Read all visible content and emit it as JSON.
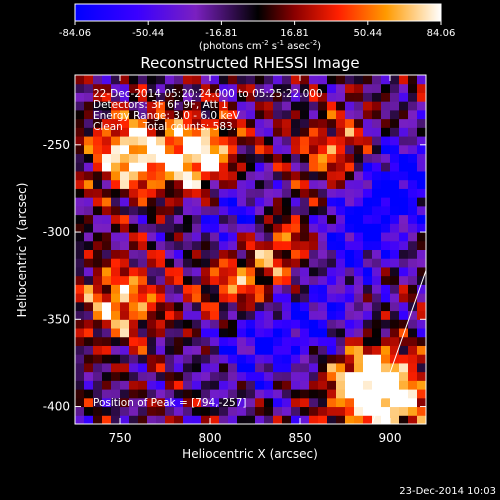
{
  "chart_data": {
    "type": "heatmap",
    "title": "Reconstructed RHESSI Image",
    "xlabel": "Heliocentric X (arcsec)",
    "ylabel": "Heliocentric Y (arcsec)",
    "xlim": [
      725,
      920
    ],
    "ylim": [
      -410,
      -210
    ],
    "x_ticks": [
      750,
      800,
      850,
      900
    ],
    "y_ticks": [
      -250,
      -300,
      -350,
      -400
    ],
    "colorbar": {
      "range": [
        -84.06,
        84.06
      ],
      "ticks": [
        "-84.06",
        "-50.44",
        "-16.81",
        "16.81",
        "50.44",
        "84.06"
      ],
      "label_parts": [
        "(photons cm",
        "-2",
        " s",
        "-1",
        " asec",
        "-2",
        ")"
      ]
    },
    "annotations": {
      "time_range": "22-Dec-2014 05:20:24.000 to 05:25:22.000",
      "detectors": "Detectors: 3F 6F 9F, Att 1",
      "energy_range": "Energy Range: 3.0 - 6.0 keV",
      "method": "Clean      Total counts: 583.",
      "peak_position": "Position of Peak = [794,-257]"
    },
    "limb_line": {
      "x": [
        890,
        920
      ],
      "y": [
        -410,
        -322
      ]
    },
    "bright_sources": [
      {
        "x": 794,
        "y": -257,
        "peak": 84.06
      },
      {
        "x": 755,
        "y": -255,
        "peak": 70
      },
      {
        "x": 885,
        "y": -385,
        "peak": 72
      },
      {
        "x": 900,
        "y": -395,
        "peak": 65
      },
      {
        "x": 750,
        "y": -340,
        "peak": 55
      },
      {
        "x": 840,
        "y": -305,
        "peak": 45
      },
      {
        "x": 815,
        "y": -330,
        "peak": 42
      },
      {
        "x": 870,
        "y": -255,
        "peak": 40
      }
    ],
    "dim_regions": [
      {
        "x": 815,
        "y": -290,
        "value": -55
      },
      {
        "x": 825,
        "y": -365,
        "value": -50
      },
      {
        "x": 880,
        "y": -300,
        "value": -60
      },
      {
        "x": 905,
        "y": -270,
        "value": -70
      },
      {
        "x": 860,
        "y": -350,
        "value": -45
      }
    ]
  },
  "footer": {
    "timestamp": "23-Dec-2014 10:03"
  }
}
